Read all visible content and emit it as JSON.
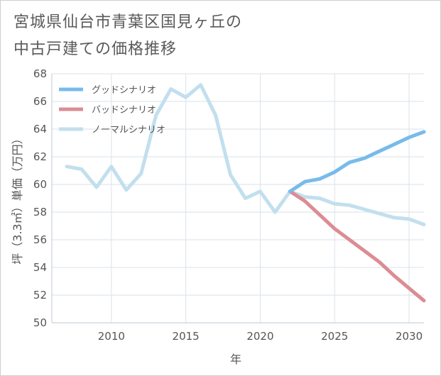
{
  "title_line1": "宮城県仙台市青葉区国見ヶ丘の",
  "title_line2": "中古戸建ての価格推移",
  "chart_data": {
    "type": "line",
    "title": "宮城県仙台市青葉区国見ヶ丘の中古戸建ての価格推移",
    "xlabel": "年",
    "ylabel": "坪（3.3㎡）単価（万円）",
    "xlim": [
      2006,
      2031
    ],
    "ylim": [
      50,
      68
    ],
    "xticks": [
      2010,
      2015,
      2020,
      2025,
      2030
    ],
    "yticks": [
      50,
      52,
      54,
      56,
      58,
      60,
      62,
      64,
      66,
      68
    ],
    "grid": true,
    "legend_position": "top-left",
    "series": [
      {
        "name": "グッドシナリオ",
        "color": "#77bbea",
        "x": [
          2022,
          2023,
          2024,
          2025,
          2026,
          2027,
          2028,
          2029,
          2030,
          2031
        ],
        "y": [
          59.5,
          60.2,
          60.4,
          60.9,
          61.6,
          61.9,
          62.4,
          62.9,
          63.4,
          63.8
        ]
      },
      {
        "name": "バッドシナリオ",
        "color": "#dc8c94",
        "x": [
          2022,
          2023,
          2024,
          2025,
          2026,
          2027,
          2028,
          2029,
          2030,
          2031
        ],
        "y": [
          59.5,
          58.8,
          57.8,
          56.8,
          56.0,
          55.2,
          54.4,
          53.4,
          52.5,
          51.6
        ]
      },
      {
        "name": "ノーマルシナリオ",
        "color": "#c2dfee",
        "x": [
          2007,
          2008,
          2009,
          2010,
          2011,
          2012,
          2013,
          2014,
          2015,
          2016,
          2017,
          2018,
          2019,
          2020,
          2021,
          2022,
          2023,
          2024,
          2025,
          2026,
          2027,
          2028,
          2029,
          2030,
          2031
        ],
        "y": [
          61.3,
          61.1,
          59.8,
          61.3,
          59.6,
          60.8,
          65.0,
          66.9,
          66.3,
          67.2,
          65.0,
          60.7,
          59.0,
          59.5,
          58.0,
          59.5,
          59.1,
          59.0,
          58.6,
          58.5,
          58.2,
          57.9,
          57.6,
          57.5,
          57.1
        ]
      }
    ]
  }
}
